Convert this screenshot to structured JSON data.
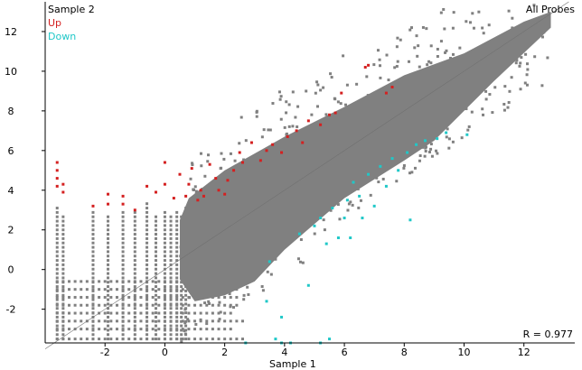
{
  "chart_data": {
    "type": "scatter",
    "title": "All Probes",
    "xlabel": "Sample 1",
    "ylabel": "Sample 2",
    "xlim": [
      -4,
      13.7
    ],
    "ylim": [
      -3.7,
      13.5
    ],
    "xticks": [
      -2,
      0,
      2,
      4,
      6,
      8,
      10,
      12
    ],
    "yticks": [
      -2,
      0,
      2,
      4,
      6,
      8,
      10,
      12
    ],
    "annotation": "R = 0.977",
    "reference_line": "y = x",
    "legend": [
      {
        "name": "Up",
        "color": "#d42020"
      },
      {
        "name": "Down",
        "color": "#20c8c8"
      }
    ],
    "all_color": "#808080",
    "dense_region_upper": [
      [
        0.5,
        2.5
      ],
      [
        0.8,
        3.6
      ],
      [
        2,
        5
      ],
      [
        4,
        6.7
      ],
      [
        6,
        8.2
      ],
      [
        8,
        9.8
      ],
      [
        10,
        10.9
      ],
      [
        12,
        12.5
      ],
      [
        12.9,
        13
      ]
    ],
    "dense_region_lower": [
      [
        12.9,
        12.2
      ],
      [
        11,
        9.5
      ],
      [
        10,
        8
      ],
      [
        9,
        6.5
      ],
      [
        8,
        5.5
      ],
      [
        6,
        3.6
      ],
      [
        4,
        1
      ],
      [
        3,
        -0.6
      ],
      [
        2,
        -1.3
      ],
      [
        1,
        -1.6
      ],
      [
        0.5,
        -0.5
      ]
    ],
    "low_columns_x": [
      -3.6,
      -3.4,
      -2.4,
      -1.9,
      -1.4,
      -1.0,
      -0.6,
      -0.3,
      0,
      0.2,
      0.4,
      0.55,
      0.7
    ],
    "low_rows_y": [
      -0.6,
      -1.0,
      -1.4,
      -1.8,
      -2.2,
      -2.6,
      -3.0,
      -3.5
    ],
    "up_points": [
      [
        -3.6,
        5.4
      ],
      [
        -3.6,
        5.0
      ],
      [
        -3.6,
        4.6
      ],
      [
        -3.6,
        4.2
      ],
      [
        -3.4,
        3.9
      ],
      [
        -3.4,
        4.3
      ],
      [
        -2.4,
        3.2
      ],
      [
        -1.9,
        3.3
      ],
      [
        -1.9,
        3.8
      ],
      [
        -1.4,
        3.3
      ],
      [
        -1.4,
        3.7
      ],
      [
        -1.0,
        3.0
      ],
      [
        -0.6,
        4.2
      ],
      [
        -0.3,
        3.9
      ],
      [
        0,
        4.3
      ],
      [
        0,
        5.4
      ],
      [
        0.3,
        3.6
      ],
      [
        0.5,
        4.8
      ],
      [
        0.7,
        3.7
      ],
      [
        0.8,
        4.3
      ],
      [
        0.9,
        5.1
      ],
      [
        1.1,
        3.5
      ],
      [
        1.2,
        4.0
      ],
      [
        1.3,
        3.7
      ],
      [
        1.5,
        5.3
      ],
      [
        1.7,
        4.6
      ],
      [
        1.8,
        4.0
      ],
      [
        2.0,
        3.8
      ],
      [
        2.1,
        4.5
      ],
      [
        2.3,
        5.0
      ],
      [
        2.5,
        5.9
      ],
      [
        2.6,
        5.4
      ],
      [
        2.9,
        6.4
      ],
      [
        3.2,
        5.5
      ],
      [
        3.4,
        6.0
      ],
      [
        3.6,
        6.3
      ],
      [
        3.9,
        5.9
      ],
      [
        4.1,
        6.7
      ],
      [
        4.4,
        7.0
      ],
      [
        4.6,
        6.4
      ],
      [
        4.8,
        7.5
      ],
      [
        5.2,
        7.3
      ],
      [
        5.5,
        7.8
      ],
      [
        5.7,
        7.9
      ],
      [
        6.7,
        10.2
      ],
      [
        6.8,
        10.3
      ],
      [
        7.4,
        8.9
      ],
      [
        7.6,
        9.2
      ],
      [
        5.9,
        8.9
      ]
    ],
    "down_points": [
      [
        2.7,
        -3.7
      ],
      [
        3.4,
        -1.6
      ],
      [
        3.5,
        0.4
      ],
      [
        3.7,
        -3.5
      ],
      [
        3.9,
        -2.4
      ],
      [
        3.9,
        -3.7
      ],
      [
        4.2,
        -3.7
      ],
      [
        4.5,
        1.8
      ],
      [
        4.8,
        -0.8
      ],
      [
        5.0,
        2.2
      ],
      [
        5.2,
        2.6
      ],
      [
        5.2,
        -3.7
      ],
      [
        5.4,
        1.3
      ],
      [
        5.5,
        -3.5
      ],
      [
        5.6,
        3.1
      ],
      [
        5.8,
        1.6
      ],
      [
        6.0,
        2.6
      ],
      [
        6.1,
        3.5
      ],
      [
        6.3,
        4.4
      ],
      [
        6.5,
        3.7
      ],
      [
        6.6,
        2.6
      ],
      [
        6.8,
        4.8
      ],
      [
        7.0,
        3.2
      ],
      [
        7.2,
        5.2
      ],
      [
        7.4,
        4.2
      ],
      [
        7.6,
        5.6
      ],
      [
        7.8,
        5.0
      ],
      [
        8.1,
        5.9
      ],
      [
        8.4,
        6.3
      ],
      [
        8.7,
        6.5
      ],
      [
        9.1,
        6.6
      ],
      [
        9.4,
        6.9
      ],
      [
        10.1,
        6.8
      ],
      [
        8.2,
        2.5
      ],
      [
        6.2,
        1.6
      ]
    ]
  }
}
